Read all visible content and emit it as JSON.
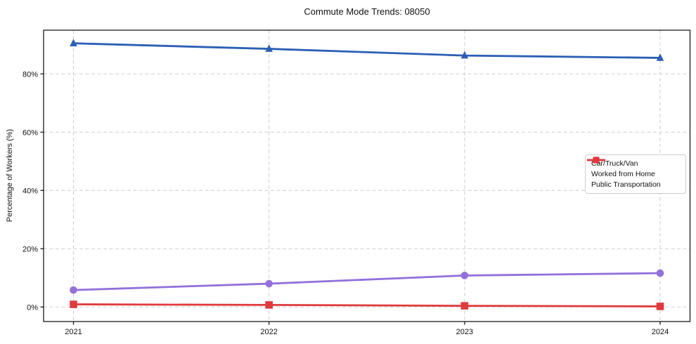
{
  "chart_data": {
    "type": "line",
    "title": "Commute Mode Trends: 08050",
    "xlabel": "",
    "ylabel": "Percentage of Workers (%)",
    "x": [
      2021,
      2022,
      2023,
      2024
    ],
    "x_tick_labels": [
      "2021",
      "2022",
      "2023",
      "2024"
    ],
    "y_ticks": [
      0,
      20,
      40,
      60,
      80
    ],
    "y_tick_labels": [
      "0%",
      "20%",
      "40%",
      "60%",
      "80%"
    ],
    "ylim": [
      -5,
      95
    ],
    "grid": true,
    "grid_style": "dashed",
    "legend_position": "center-right",
    "series": [
      {
        "name": "Car/Truck/Van",
        "marker": "triangle",
        "color": "#2b5fb4",
        "values": [
          90.5,
          88.6,
          86.3,
          85.5
        ]
      },
      {
        "name": "Worked from Home",
        "marker": "circle",
        "color": "#9370db",
        "values": [
          5.8,
          8.0,
          10.8,
          11.6
        ]
      },
      {
        "name": "Public Transportation",
        "marker": "square",
        "color": "#e03a3c",
        "values": [
          0.9,
          0.7,
          0.4,
          0.2
        ]
      }
    ]
  },
  "colors": {
    "background": "#ffffff",
    "gridline": "#cdcdcd",
    "spine": "#1b1b1b",
    "text": "#111111",
    "legend_border": "#cccccc"
  }
}
